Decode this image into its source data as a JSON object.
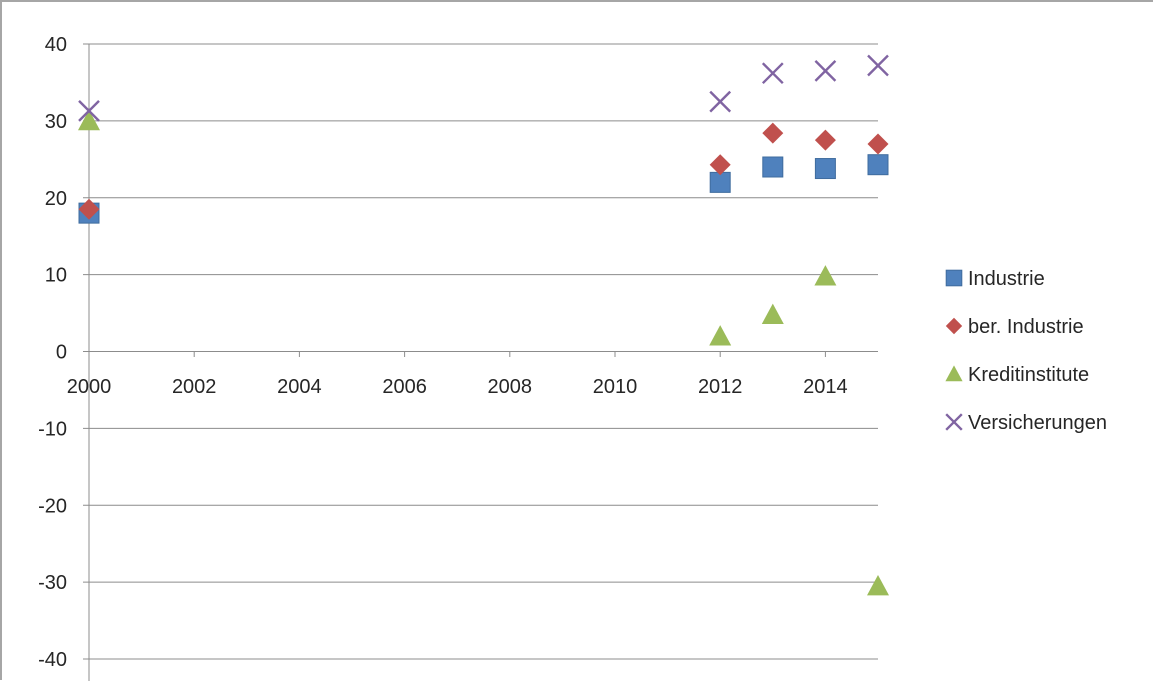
{
  "chart_data": {
    "type": "scatter",
    "title": "",
    "xlabel": "",
    "ylabel": "",
    "xlim": [
      2000,
      2015
    ],
    "ylim": [
      -40,
      40
    ],
    "x_ticks": [
      "2000",
      "2002",
      "2004",
      "2006",
      "2008",
      "2010",
      "2012",
      "2014"
    ],
    "y_ticks": [
      "40",
      "30",
      "20",
      "10",
      "0",
      "-10",
      "-20",
      "-30",
      "-40"
    ],
    "grid": "horizontal",
    "legend_position": "right",
    "series": [
      {
        "name": "Industrie",
        "marker": "square",
        "color": "#4f81bd",
        "points": [
          [
            2000,
            18.0
          ],
          [
            2012,
            22.0
          ],
          [
            2013,
            24.0
          ],
          [
            2014,
            23.8
          ],
          [
            2015,
            24.3
          ]
        ]
      },
      {
        "name": "ber. Industrie",
        "marker": "diamond",
        "color": "#c0504d",
        "points": [
          [
            2000,
            18.5
          ],
          [
            2012,
            24.3
          ],
          [
            2013,
            28.4
          ],
          [
            2014,
            27.5
          ],
          [
            2015,
            27.0
          ]
        ]
      },
      {
        "name": "Kreditinstitute",
        "marker": "triangle",
        "color": "#9bbb59",
        "points": [
          [
            2000,
            30.0
          ],
          [
            2012,
            2.0
          ],
          [
            2013,
            4.8
          ],
          [
            2014,
            9.8
          ],
          [
            2015,
            -30.5
          ]
        ]
      },
      {
        "name": "Versicherungen",
        "marker": "x",
        "color": "#8064a2",
        "points": [
          [
            2000,
            31.3
          ],
          [
            2012,
            32.5
          ],
          [
            2013,
            36.2
          ],
          [
            2014,
            36.5
          ],
          [
            2015,
            37.2
          ]
        ]
      }
    ]
  }
}
